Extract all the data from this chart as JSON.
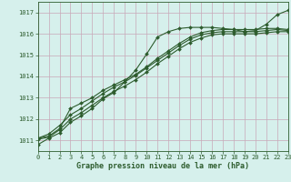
{
  "xlabel": "Graphe pression niveau de la mer (hPa)",
  "bg_color": "#d6f0ec",
  "grid_color": "#c8a8b8",
  "line_color": "#2d5c2d",
  "ylim": [
    1010.5,
    1017.5
  ],
  "xlim": [
    0,
    23
  ],
  "yticks": [
    1011,
    1012,
    1013,
    1014,
    1015,
    1016,
    1017
  ],
  "xticks": [
    0,
    1,
    2,
    3,
    4,
    5,
    6,
    7,
    8,
    9,
    10,
    11,
    12,
    13,
    14,
    15,
    16,
    17,
    18,
    19,
    20,
    21,
    22,
    23
  ],
  "series": [
    [
      1010.8,
      1011.1,
      1011.35,
      1011.85,
      1012.15,
      1012.5,
      1012.95,
      1013.25,
      1013.75,
      1014.3,
      1015.05,
      1015.85,
      1016.1,
      1016.25,
      1016.3,
      1016.3,
      1016.3,
      1016.25,
      1016.2,
      1016.1,
      1016.15,
      1016.45,
      1016.9,
      1017.1
    ],
    [
      1011.1,
      1011.2,
      1011.55,
      1012.5,
      1012.75,
      1013.0,
      1013.35,
      1013.6,
      1013.85,
      1014.1,
      1014.45,
      1014.85,
      1015.2,
      1015.55,
      1015.85,
      1016.05,
      1016.15,
      1016.2,
      1016.2,
      1016.2,
      1016.2,
      1016.25,
      1016.25,
      1016.2
    ],
    [
      1011.1,
      1011.3,
      1011.7,
      1012.2,
      1012.5,
      1012.85,
      1013.2,
      1013.5,
      1013.75,
      1014.05,
      1014.4,
      1014.75,
      1015.1,
      1015.45,
      1015.75,
      1015.95,
      1016.05,
      1016.1,
      1016.1,
      1016.1,
      1016.1,
      1016.15,
      1016.2,
      1016.15
    ],
    [
      1011.05,
      1011.15,
      1011.5,
      1012.0,
      1012.3,
      1012.65,
      1013.0,
      1013.3,
      1013.55,
      1013.85,
      1014.2,
      1014.6,
      1014.95,
      1015.3,
      1015.6,
      1015.8,
      1015.95,
      1016.0,
      1016.0,
      1016.0,
      1016.0,
      1016.05,
      1016.1,
      1016.1
    ]
  ]
}
